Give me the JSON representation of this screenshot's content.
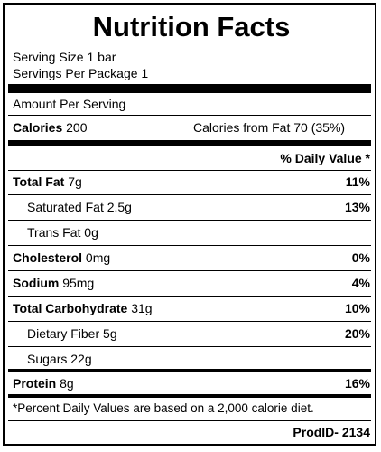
{
  "title": "Nutrition Facts",
  "serving_size": "Serving Size 1 bar",
  "servings_per_package": "Servings Per Package 1",
  "amount_per_serving": "Amount Per Serving",
  "calories": {
    "label": "Calories",
    "value": "200",
    "from_fat": "Calories from Fat 70 (35%)"
  },
  "dv_header": "% Daily Value *",
  "nutrients": [
    {
      "name": "Total Fat",
      "amount": "7g",
      "dv": "11%"
    },
    {
      "name": "Saturated Fat",
      "amount": "2.5g",
      "dv": "13%"
    },
    {
      "name": "Trans Fat",
      "amount": "0g",
      "dv": ""
    },
    {
      "name": "Cholesterol",
      "amount": "0mg",
      "dv": "0%"
    },
    {
      "name": "Sodium",
      "amount": "95mg",
      "dv": "4%"
    },
    {
      "name": "Total Carbohydrate",
      "amount": "31g",
      "dv": "10%"
    },
    {
      "name": "Dietary Fiber",
      "amount": "5g",
      "dv": "20%"
    },
    {
      "name": "Sugars",
      "amount": "22g",
      "dv": ""
    },
    {
      "name": "Protein",
      "amount": "8g",
      "dv": "16%"
    }
  ],
  "footnote": "*Percent Daily Values are based on a 2,000 calorie diet.",
  "prod_id": "ProdID- 2134"
}
